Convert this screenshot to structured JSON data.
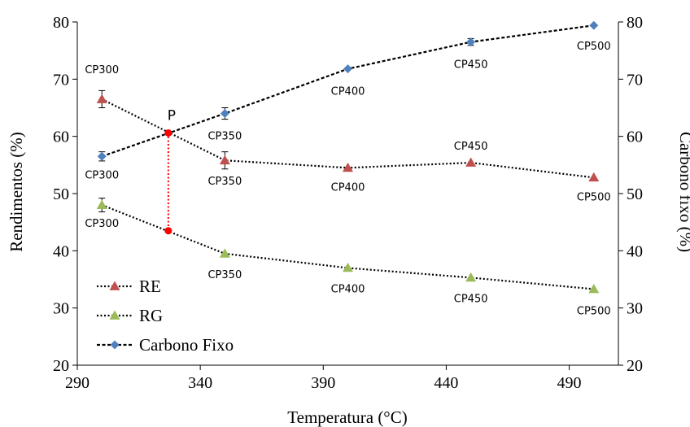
{
  "chart_data": {
    "type": "line",
    "xlabel": "Temperatura (°C)",
    "ylabel_left": "Rendimentos (%)",
    "ylabel_right": "Carbono fixo (%)",
    "xlim": [
      290,
      510
    ],
    "ylim": [
      20,
      80
    ],
    "x_ticks": [
      290,
      340,
      390,
      440,
      490
    ],
    "y_ticks": [
      20,
      30,
      40,
      50,
      60,
      70,
      80
    ],
    "grid": false,
    "legend_position": "bottom-left",
    "x": [
      300,
      350,
      400,
      450,
      500
    ],
    "series": [
      {
        "name": "RE",
        "axis": "left",
        "values": [
          66.5,
          55.8,
          54.5,
          55.4,
          52.8
        ],
        "error": [
          1.5,
          1.5,
          0,
          0,
          0
        ],
        "labels": [
          "CP300",
          "CP350",
          "CP400",
          "CP450",
          "CP500"
        ],
        "marker": "triangle",
        "color": "#C0504D",
        "line_style": "dotted"
      },
      {
        "name": "RG",
        "axis": "left",
        "values": [
          48.0,
          39.5,
          37.0,
          35.3,
          33.3
        ],
        "error": [
          1.2,
          0,
          0,
          0,
          0
        ],
        "labels": [
          "CP300",
          "CP350",
          "CP400",
          "CP450",
          "CP500"
        ],
        "marker": "triangle",
        "color": "#9BBB59",
        "line_style": "dotted"
      },
      {
        "name": "Carbono Fixo",
        "axis": "right",
        "values": [
          56.5,
          64.0,
          71.8,
          76.5,
          79.4
        ],
        "error": [
          0.8,
          1.0,
          0,
          0.6,
          0
        ],
        "labels": [
          "CP300",
          "CP350",
          "CP400",
          "CP450",
          "CP500"
        ],
        "marker": "diamond",
        "color": "#4F81BD",
        "line_style": "dashed"
      }
    ],
    "annotation": {
      "label": "P",
      "x": 327,
      "y_top": 60.6,
      "y_bottom": 43.5,
      "color": "#FF0000"
    }
  }
}
